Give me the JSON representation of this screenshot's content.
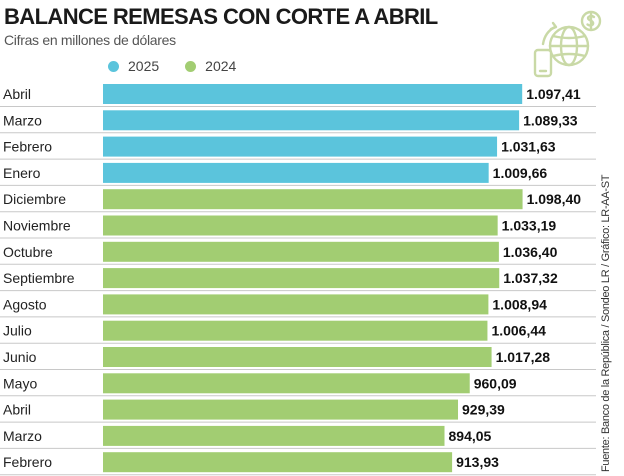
{
  "title": "BALANCE REMESAS CON CORTE A ABRIL",
  "subtitle": "Cifras en millones de dólares",
  "source": "Fuente: Banco de la República / Sondeo LR / Gráfico: LR-AA-ST",
  "colors": {
    "series_2025": "#5bc4dc",
    "series_2024": "#a2cd72",
    "logo": "#c9d9a6"
  },
  "chart_data": {
    "type": "bar",
    "orientation": "horizontal",
    "legend": [
      {
        "name": "2025",
        "color": "#5bc4dc"
      },
      {
        "name": "2024",
        "color": "#a2cd72"
      }
    ],
    "legend_placement": "top-left",
    "grid": true,
    "xlim": [
      0,
      1110
    ],
    "bars": [
      {
        "label": "Abril",
        "series": "2025",
        "value": 1097.41,
        "text": "1.097,41"
      },
      {
        "label": "Marzo",
        "series": "2025",
        "value": 1089.33,
        "text": "1.089,33"
      },
      {
        "label": "Febrero",
        "series": "2025",
        "value": 1031.63,
        "text": "1.031,63"
      },
      {
        "label": "Enero",
        "series": "2025",
        "value": 1009.66,
        "text": "1.009,66"
      },
      {
        "label": "Diciembre",
        "series": "2024",
        "value": 1098.4,
        "text": "1.098,40"
      },
      {
        "label": "Noviembre",
        "series": "2024",
        "value": 1033.19,
        "text": "1.033,19"
      },
      {
        "label": "Octubre",
        "series": "2024",
        "value": 1036.4,
        "text": "1.036,40"
      },
      {
        "label": "Septiembre",
        "series": "2024",
        "value": 1037.32,
        "text": "1.037,32"
      },
      {
        "label": "Agosto",
        "series": "2024",
        "value": 1008.94,
        "text": "1.008,94"
      },
      {
        "label": "Julio",
        "series": "2024",
        "value": 1006.44,
        "text": "1.006,44"
      },
      {
        "label": "Junio",
        "series": "2024",
        "value": 1017.28,
        "text": "1.017,28"
      },
      {
        "label": "Mayo",
        "series": "2024",
        "value": 960.09,
        "text": "960,09"
      },
      {
        "label": "Abril",
        "series": "2024",
        "value": 929.39,
        "text": "929,39"
      },
      {
        "label": "Marzo",
        "series": "2024",
        "value": 894.05,
        "text": "894,05"
      },
      {
        "label": "Febrero",
        "series": "2024",
        "value": 913.93,
        "text": "913,93"
      }
    ]
  }
}
